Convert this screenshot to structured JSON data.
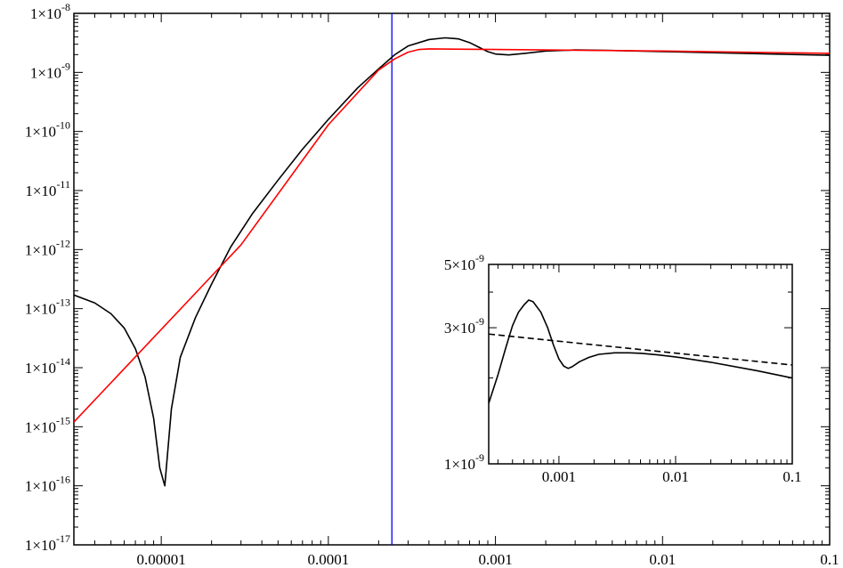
{
  "chart_data": [
    {
      "type": "line",
      "title": "",
      "xlabel": "",
      "ylabel": "",
      "x_scale": "log",
      "y_scale": "log",
      "xlim": [
        3e-06,
        0.1
      ],
      "ylim": [
        1e-17,
        1e-08
      ],
      "grid": false,
      "x_tick_labels": [
        "0.00001",
        "0.0001",
        "0.001",
        "0.01",
        "0.1"
      ],
      "x_tick_values": [
        1e-05,
        0.0001,
        0.001,
        0.01,
        0.1
      ],
      "y_tick_labels": [
        {
          "mantissa": "1×10",
          "exp": "-17",
          "value": 1e-17
        },
        {
          "mantissa": "1×10",
          "exp": "-16",
          "value": 1e-16
        },
        {
          "mantissa": "1×10",
          "exp": "-15",
          "value": 1e-15
        },
        {
          "mantissa": "1×10",
          "exp": "-14",
          "value": 1e-14
        },
        {
          "mantissa": "1×10",
          "exp": "-13",
          "value": 1e-13
        },
        {
          "mantissa": "1×10",
          "exp": "-12",
          "value": 1e-12
        },
        {
          "mantissa": "1×10",
          "exp": "-11",
          "value": 1e-11
        },
        {
          "mantissa": "1×10",
          "exp": "-10",
          "value": 1e-10
        },
        {
          "mantissa": "1×10",
          "exp": "-9",
          "value": 1e-09
        },
        {
          "mantissa": "1×10",
          "exp": "-8",
          "value": 1e-08
        }
      ],
      "vertical_line_x": 0.00024,
      "series": [
        {
          "color": "#000000",
          "dash": "solid",
          "x": [
            3e-06,
            4e-06,
            5e-06,
            6e-06,
            7e-06,
            8e-06,
            9e-06,
            9.8e-06,
            1.05e-05,
            1.15e-05,
            1.3e-05,
            1.6e-05,
            2e-05,
            2.6e-05,
            3.5e-05,
            5e-05,
            7e-05,
            0.0001,
            0.00015,
            0.0002,
            0.00025,
            0.0003,
            0.0004,
            0.0005,
            0.0006,
            0.0007,
            0.0008,
            0.0009,
            0.001,
            0.0012,
            0.0015,
            0.002,
            0.003,
            0.005,
            0.01,
            0.03,
            0.1
          ],
          "y": [
            1.7e-13,
            1.25e-13,
            8.2e-14,
            4.7e-14,
            2.1e-14,
            7e-15,
            1.4e-15,
            2e-16,
            1e-16,
            2e-15,
            1.5e-14,
            7e-14,
            2.6e-13,
            1.1e-12,
            4e-12,
            1.5e-11,
            5e-11,
            1.6e-10,
            5.5e-10,
            1.15e-09,
            2e-09,
            2.8e-09,
            3.6e-09,
            3.85e-09,
            3.7e-09,
            3.2e-09,
            2.65e-09,
            2.25e-09,
            2.05e-09,
            1.98e-09,
            2.1e-09,
            2.3e-09,
            2.4e-09,
            2.35e-09,
            2.25e-09,
            2.1e-09,
            1.95e-09
          ]
        },
        {
          "color": "#ff0000",
          "dash": "solid",
          "x": [
            3e-06,
            3e-05,
            0.0001,
            0.0002,
            0.00025,
            0.0003,
            0.00035,
            0.0004,
            0.001,
            0.01,
            0.1
          ],
          "y": [
            1.2e-15,
            1.2e-12,
            1.3e-10,
            1.1e-09,
            1.7e-09,
            2.2e-09,
            2.45e-09,
            2.5e-09,
            2.45e-09,
            2.3e-09,
            2.1e-09
          ]
        }
      ]
    },
    {
      "type": "line",
      "title": "",
      "xlabel": "",
      "ylabel": "",
      "x_scale": "log",
      "y_scale": "log",
      "xlim": [
        0.00025,
        0.1
      ],
      "ylim": [
        1e-09,
        5e-09
      ],
      "grid": false,
      "x_tick_labels": [
        "0.001",
        "0.01",
        "0.1"
      ],
      "x_tick_values": [
        0.001,
        0.01,
        0.1
      ],
      "y_tick_labels": [
        {
          "mantissa": "1×10",
          "exp": "-9",
          "value": 1e-09
        },
        {
          "mantissa": "3×10",
          "exp": "-9",
          "value": 3e-09
        },
        {
          "mantissa": "5×10",
          "exp": "-9",
          "value": 5e-09
        }
      ],
      "series": [
        {
          "color": "#000000",
          "dash": "solid",
          "x": [
            0.00025,
            0.0003,
            0.00035,
            0.0004,
            0.00045,
            0.0005,
            0.00055,
            0.0006,
            0.0007,
            0.0008,
            0.0009,
            0.001,
            0.0011,
            0.0012,
            0.0013,
            0.0015,
            0.0018,
            0.0022,
            0.003,
            0.004,
            0.005,
            0.007,
            0.01,
            0.02,
            0.05,
            0.1
          ],
          "y": [
            1.63e-09,
            2.05e-09,
            2.55e-09,
            3.05e-09,
            3.4e-09,
            3.6e-09,
            3.75e-09,
            3.7e-09,
            3.4e-09,
            3e-09,
            2.6e-09,
            2.33e-09,
            2.2e-09,
            2.16e-09,
            2.19e-09,
            2.28e-09,
            2.36e-09,
            2.42e-09,
            2.45e-09,
            2.45e-09,
            2.44e-09,
            2.41e-09,
            2.37e-09,
            2.27e-09,
            2.12e-09,
            2e-09
          ]
        },
        {
          "color": "#000000",
          "dash": "dashed",
          "x": [
            0.00025,
            0.1
          ],
          "y": [
            2.85e-09,
            2.22e-09
          ]
        }
      ]
    }
  ]
}
